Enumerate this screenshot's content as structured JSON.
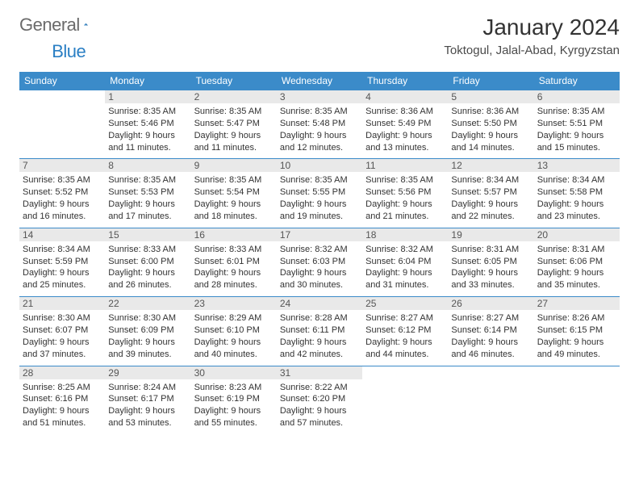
{
  "brand": {
    "word1": "General",
    "word2": "Blue"
  },
  "title": "January 2024",
  "location": "Toktogul, Jalal-Abad, Kyrgyzstan",
  "colors": {
    "header_bg": "#3b8bc9",
    "header_text": "#ffffff",
    "daynum_bg": "#e9e9e9",
    "row_border": "#3b8bc9",
    "page_bg": "#ffffff",
    "text": "#333333",
    "brand_blue": "#2a7fc4",
    "brand_gray": "#6b6b6b"
  },
  "weekdays": [
    "Sunday",
    "Monday",
    "Tuesday",
    "Wednesday",
    "Thursday",
    "Friday",
    "Saturday"
  ],
  "weeks": [
    [
      {
        "day": "",
        "lines": []
      },
      {
        "day": "1",
        "lines": [
          "Sunrise: 8:35 AM",
          "Sunset: 5:46 PM",
          "Daylight: 9 hours",
          "and 11 minutes."
        ]
      },
      {
        "day": "2",
        "lines": [
          "Sunrise: 8:35 AM",
          "Sunset: 5:47 PM",
          "Daylight: 9 hours",
          "and 11 minutes."
        ]
      },
      {
        "day": "3",
        "lines": [
          "Sunrise: 8:35 AM",
          "Sunset: 5:48 PM",
          "Daylight: 9 hours",
          "and 12 minutes."
        ]
      },
      {
        "day": "4",
        "lines": [
          "Sunrise: 8:36 AM",
          "Sunset: 5:49 PM",
          "Daylight: 9 hours",
          "and 13 minutes."
        ]
      },
      {
        "day": "5",
        "lines": [
          "Sunrise: 8:36 AM",
          "Sunset: 5:50 PM",
          "Daylight: 9 hours",
          "and 14 minutes."
        ]
      },
      {
        "day": "6",
        "lines": [
          "Sunrise: 8:35 AM",
          "Sunset: 5:51 PM",
          "Daylight: 9 hours",
          "and 15 minutes."
        ]
      }
    ],
    [
      {
        "day": "7",
        "lines": [
          "Sunrise: 8:35 AM",
          "Sunset: 5:52 PM",
          "Daylight: 9 hours",
          "and 16 minutes."
        ]
      },
      {
        "day": "8",
        "lines": [
          "Sunrise: 8:35 AM",
          "Sunset: 5:53 PM",
          "Daylight: 9 hours",
          "and 17 minutes."
        ]
      },
      {
        "day": "9",
        "lines": [
          "Sunrise: 8:35 AM",
          "Sunset: 5:54 PM",
          "Daylight: 9 hours",
          "and 18 minutes."
        ]
      },
      {
        "day": "10",
        "lines": [
          "Sunrise: 8:35 AM",
          "Sunset: 5:55 PM",
          "Daylight: 9 hours",
          "and 19 minutes."
        ]
      },
      {
        "day": "11",
        "lines": [
          "Sunrise: 8:35 AM",
          "Sunset: 5:56 PM",
          "Daylight: 9 hours",
          "and 21 minutes."
        ]
      },
      {
        "day": "12",
        "lines": [
          "Sunrise: 8:34 AM",
          "Sunset: 5:57 PM",
          "Daylight: 9 hours",
          "and 22 minutes."
        ]
      },
      {
        "day": "13",
        "lines": [
          "Sunrise: 8:34 AM",
          "Sunset: 5:58 PM",
          "Daylight: 9 hours",
          "and 23 minutes."
        ]
      }
    ],
    [
      {
        "day": "14",
        "lines": [
          "Sunrise: 8:34 AM",
          "Sunset: 5:59 PM",
          "Daylight: 9 hours",
          "and 25 minutes."
        ]
      },
      {
        "day": "15",
        "lines": [
          "Sunrise: 8:33 AM",
          "Sunset: 6:00 PM",
          "Daylight: 9 hours",
          "and 26 minutes."
        ]
      },
      {
        "day": "16",
        "lines": [
          "Sunrise: 8:33 AM",
          "Sunset: 6:01 PM",
          "Daylight: 9 hours",
          "and 28 minutes."
        ]
      },
      {
        "day": "17",
        "lines": [
          "Sunrise: 8:32 AM",
          "Sunset: 6:03 PM",
          "Daylight: 9 hours",
          "and 30 minutes."
        ]
      },
      {
        "day": "18",
        "lines": [
          "Sunrise: 8:32 AM",
          "Sunset: 6:04 PM",
          "Daylight: 9 hours",
          "and 31 minutes."
        ]
      },
      {
        "day": "19",
        "lines": [
          "Sunrise: 8:31 AM",
          "Sunset: 6:05 PM",
          "Daylight: 9 hours",
          "and 33 minutes."
        ]
      },
      {
        "day": "20",
        "lines": [
          "Sunrise: 8:31 AM",
          "Sunset: 6:06 PM",
          "Daylight: 9 hours",
          "and 35 minutes."
        ]
      }
    ],
    [
      {
        "day": "21",
        "lines": [
          "Sunrise: 8:30 AM",
          "Sunset: 6:07 PM",
          "Daylight: 9 hours",
          "and 37 minutes."
        ]
      },
      {
        "day": "22",
        "lines": [
          "Sunrise: 8:30 AM",
          "Sunset: 6:09 PM",
          "Daylight: 9 hours",
          "and 39 minutes."
        ]
      },
      {
        "day": "23",
        "lines": [
          "Sunrise: 8:29 AM",
          "Sunset: 6:10 PM",
          "Daylight: 9 hours",
          "and 40 minutes."
        ]
      },
      {
        "day": "24",
        "lines": [
          "Sunrise: 8:28 AM",
          "Sunset: 6:11 PM",
          "Daylight: 9 hours",
          "and 42 minutes."
        ]
      },
      {
        "day": "25",
        "lines": [
          "Sunrise: 8:27 AM",
          "Sunset: 6:12 PM",
          "Daylight: 9 hours",
          "and 44 minutes."
        ]
      },
      {
        "day": "26",
        "lines": [
          "Sunrise: 8:27 AM",
          "Sunset: 6:14 PM",
          "Daylight: 9 hours",
          "and 46 minutes."
        ]
      },
      {
        "day": "27",
        "lines": [
          "Sunrise: 8:26 AM",
          "Sunset: 6:15 PM",
          "Daylight: 9 hours",
          "and 49 minutes."
        ]
      }
    ],
    [
      {
        "day": "28",
        "lines": [
          "Sunrise: 8:25 AM",
          "Sunset: 6:16 PM",
          "Daylight: 9 hours",
          "and 51 minutes."
        ]
      },
      {
        "day": "29",
        "lines": [
          "Sunrise: 8:24 AM",
          "Sunset: 6:17 PM",
          "Daylight: 9 hours",
          "and 53 minutes."
        ]
      },
      {
        "day": "30",
        "lines": [
          "Sunrise: 8:23 AM",
          "Sunset: 6:19 PM",
          "Daylight: 9 hours",
          "and 55 minutes."
        ]
      },
      {
        "day": "31",
        "lines": [
          "Sunrise: 8:22 AM",
          "Sunset: 6:20 PM",
          "Daylight: 9 hours",
          "and 57 minutes."
        ]
      },
      {
        "day": "",
        "lines": []
      },
      {
        "day": "",
        "lines": []
      },
      {
        "day": "",
        "lines": []
      }
    ]
  ]
}
